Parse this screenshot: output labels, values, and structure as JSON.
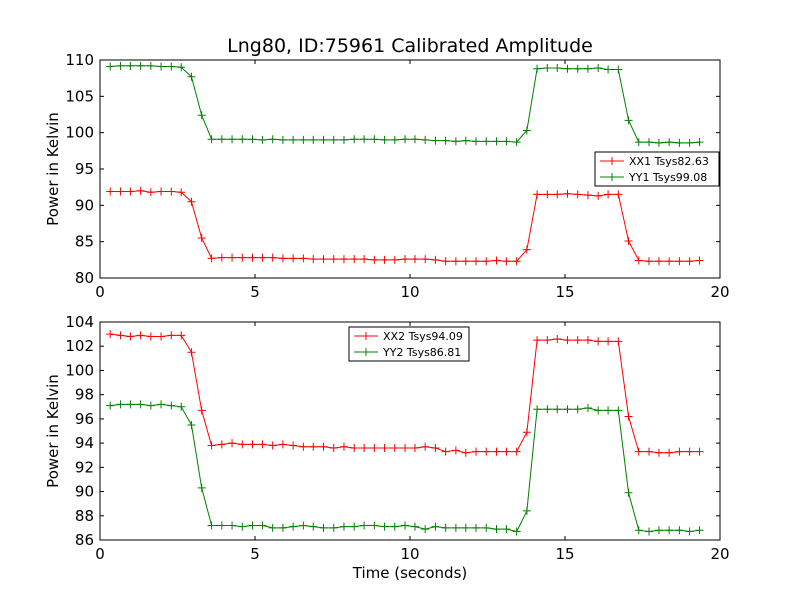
{
  "chart_data": [
    {
      "type": "line",
      "title": "Lng80, ID:75961 Calibrated Amplitude",
      "xlabel": "",
      "ylabel": "Power in Kelvin",
      "xlim": [
        0,
        20
      ],
      "ylim": [
        80,
        110
      ],
      "xticks": [
        0,
        5,
        10,
        15,
        20
      ],
      "yticks": [
        80,
        85,
        90,
        95,
        100,
        105,
        110
      ],
      "grid": false,
      "legend": "center-right",
      "series": [
        {
          "name": "XX1 Tsys82.63",
          "color": "#ff0000",
          "marker": "plus",
          "x": [
            0.33,
            0.66,
            0.98,
            1.31,
            1.64,
            1.97,
            2.3,
            2.62,
            2.95,
            3.28,
            3.6,
            3.93,
            4.26,
            4.59,
            4.92,
            5.24,
            5.57,
            5.9,
            6.23,
            6.56,
            6.88,
            7.21,
            7.54,
            7.87,
            8.2,
            8.52,
            8.85,
            9.18,
            9.51,
            9.84,
            10.16,
            10.49,
            10.82,
            11.15,
            11.48,
            11.8,
            12.13,
            12.46,
            12.79,
            13.11,
            13.44,
            13.77,
            14.1,
            14.43,
            14.75,
            15.08,
            15.41,
            15.74,
            16.07,
            16.39,
            16.72,
            17.05,
            17.38,
            17.71,
            18.03,
            18.36,
            18.69,
            19.02,
            19.34
          ],
          "y": [
            91.9,
            91.9,
            91.9,
            92.0,
            91.8,
            91.9,
            91.9,
            91.8,
            90.5,
            85.5,
            82.7,
            82.8,
            82.8,
            82.8,
            82.8,
            82.8,
            82.8,
            82.7,
            82.7,
            82.7,
            82.6,
            82.6,
            82.6,
            82.6,
            82.6,
            82.6,
            82.5,
            82.5,
            82.5,
            82.6,
            82.6,
            82.6,
            82.5,
            82.3,
            82.3,
            82.3,
            82.3,
            82.3,
            82.4,
            82.3,
            82.3,
            83.9,
            91.5,
            91.5,
            91.5,
            91.6,
            91.5,
            91.4,
            91.3,
            91.5,
            91.5,
            85.1,
            82.4,
            82.3,
            82.3,
            82.3,
            82.3,
            82.3,
            82.4
          ]
        },
        {
          "name": "YY1 Tsys99.08",
          "color": "#008000",
          "marker": "plus",
          "x": [
            0.33,
            0.66,
            0.98,
            1.31,
            1.64,
            1.97,
            2.3,
            2.62,
            2.95,
            3.28,
            3.6,
            3.93,
            4.26,
            4.59,
            4.92,
            5.24,
            5.57,
            5.9,
            6.23,
            6.56,
            6.88,
            7.21,
            7.54,
            7.87,
            8.2,
            8.52,
            8.85,
            9.18,
            9.51,
            9.84,
            10.16,
            10.49,
            10.82,
            11.15,
            11.48,
            11.8,
            12.13,
            12.46,
            12.79,
            13.11,
            13.44,
            13.77,
            14.1,
            14.43,
            14.75,
            15.08,
            15.41,
            15.74,
            16.07,
            16.39,
            16.72,
            17.05,
            17.38,
            17.71,
            18.03,
            18.36,
            18.69,
            19.02,
            19.34
          ],
          "y": [
            109.1,
            109.2,
            109.2,
            109.2,
            109.2,
            109.1,
            109.1,
            109.0,
            107.7,
            102.4,
            99.1,
            99.1,
            99.1,
            99.1,
            99.1,
            99.0,
            99.1,
            99.0,
            99.0,
            99.0,
            99.0,
            99.0,
            99.0,
            99.0,
            99.1,
            99.1,
            99.1,
            99.0,
            99.0,
            99.1,
            99.1,
            99.0,
            98.9,
            98.9,
            98.8,
            98.9,
            98.8,
            98.8,
            98.8,
            98.8,
            98.7,
            100.3,
            108.8,
            108.9,
            108.9,
            108.8,
            108.8,
            108.8,
            108.9,
            108.7,
            108.7,
            101.7,
            98.7,
            98.7,
            98.6,
            98.7,
            98.6,
            98.6,
            98.7
          ]
        }
      ]
    },
    {
      "type": "line",
      "title": "",
      "xlabel": "Time (seconds)",
      "ylabel": "Power in Kelvin",
      "xlim": [
        0,
        20
      ],
      "ylim": [
        86,
        104
      ],
      "xticks": [
        0,
        5,
        10,
        15,
        20
      ],
      "yticks": [
        86,
        88,
        90,
        92,
        94,
        96,
        98,
        100,
        102,
        104
      ],
      "grid": false,
      "legend": "upper-center",
      "series": [
        {
          "name": "XX2 Tsys94.09",
          "color": "#ff0000",
          "marker": "plus",
          "x": [
            0.33,
            0.66,
            0.98,
            1.31,
            1.64,
            1.97,
            2.3,
            2.62,
            2.95,
            3.28,
            3.6,
            3.93,
            4.26,
            4.59,
            4.92,
            5.24,
            5.57,
            5.9,
            6.23,
            6.56,
            6.88,
            7.21,
            7.54,
            7.87,
            8.2,
            8.52,
            8.85,
            9.18,
            9.51,
            9.84,
            10.16,
            10.49,
            10.82,
            11.15,
            11.48,
            11.8,
            12.13,
            12.46,
            12.79,
            13.11,
            13.44,
            13.77,
            14.1,
            14.43,
            14.75,
            15.08,
            15.41,
            15.74,
            16.07,
            16.39,
            16.72,
            17.05,
            17.38,
            17.71,
            18.03,
            18.36,
            18.69,
            19.02,
            19.34
          ],
          "y": [
            103.0,
            102.9,
            102.8,
            102.9,
            102.8,
            102.8,
            102.9,
            102.9,
            101.5,
            96.7,
            93.8,
            93.9,
            94.0,
            93.9,
            93.9,
            93.9,
            93.8,
            93.9,
            93.8,
            93.7,
            93.7,
            93.7,
            93.6,
            93.7,
            93.6,
            93.6,
            93.6,
            93.6,
            93.6,
            93.6,
            93.6,
            93.7,
            93.6,
            93.3,
            93.4,
            93.2,
            93.3,
            93.3,
            93.3,
            93.3,
            93.3,
            94.9,
            102.5,
            102.5,
            102.6,
            102.5,
            102.5,
            102.5,
            102.4,
            102.4,
            102.4,
            96.2,
            93.3,
            93.3,
            93.2,
            93.2,
            93.3,
            93.3,
            93.3
          ]
        },
        {
          "name": "YY2 Tsys86.81",
          "color": "#008000",
          "marker": "plus",
          "x": [
            0.33,
            0.66,
            0.98,
            1.31,
            1.64,
            1.97,
            2.3,
            2.62,
            2.95,
            3.28,
            3.6,
            3.93,
            4.26,
            4.59,
            4.92,
            5.24,
            5.57,
            5.9,
            6.23,
            6.56,
            6.88,
            7.21,
            7.54,
            7.87,
            8.2,
            8.52,
            8.85,
            9.18,
            9.51,
            9.84,
            10.16,
            10.49,
            10.82,
            11.15,
            11.48,
            11.8,
            12.13,
            12.46,
            12.79,
            13.11,
            13.44,
            13.77,
            14.1,
            14.43,
            14.75,
            15.08,
            15.41,
            15.74,
            16.07,
            16.39,
            16.72,
            17.05,
            17.38,
            17.71,
            18.03,
            18.36,
            18.69,
            19.02,
            19.34
          ],
          "y": [
            97.1,
            97.2,
            97.2,
            97.2,
            97.1,
            97.2,
            97.1,
            97.0,
            95.5,
            90.3,
            87.2,
            87.2,
            87.2,
            87.1,
            87.2,
            87.2,
            87.0,
            87.0,
            87.1,
            87.2,
            87.1,
            87.0,
            87.0,
            87.1,
            87.1,
            87.2,
            87.2,
            87.1,
            87.1,
            87.2,
            87.1,
            86.9,
            87.1,
            87.0,
            87.0,
            87.0,
            87.0,
            87.0,
            86.9,
            86.9,
            86.7,
            88.4,
            96.8,
            96.8,
            96.8,
            96.8,
            96.8,
            96.9,
            96.7,
            96.7,
            96.7,
            89.9,
            86.8,
            86.7,
            86.8,
            86.8,
            86.8,
            86.7,
            86.8
          ]
        }
      ]
    }
  ]
}
